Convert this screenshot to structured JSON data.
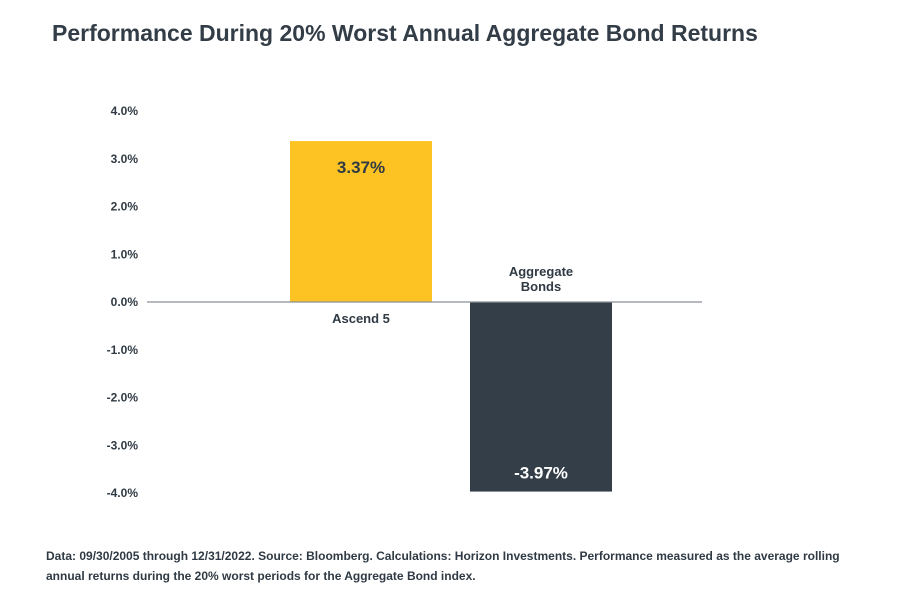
{
  "title": "Performance During 20% Worst Annual Aggregate Bond Returns",
  "footnote": "Data: 09/30/2005 through 12/31/2022. Source: Bloomberg. Calculations: Horizon Investments. Performance measured as the average rolling annual returns during the 20% worst periods for the Aggregate Bond index.",
  "chart_data": {
    "type": "bar",
    "categories": [
      "Ascend 5",
      "Aggregate\nBonds"
    ],
    "values": [
      3.37,
      -3.97
    ],
    "data_labels": [
      "3.37%",
      "-3.97%"
    ],
    "colors": [
      "#fdc323",
      "#333e48"
    ],
    "label_colors": [
      "#2f3a44",
      "#ffffff"
    ],
    "ylim": [
      -4.0,
      4.0
    ],
    "yticks": [
      "4.0%",
      "3.0%",
      "2.0%",
      "1.0%",
      "0.0%",
      "-1.0%",
      "-2.0%",
      "-3.0%",
      "-4.0%"
    ],
    "ytick_values": [
      4,
      3,
      2,
      1,
      0,
      -1,
      -2,
      -3,
      -4
    ],
    "grid": false,
    "legend": false,
    "title": "Performance During 20% Worst Annual Aggregate Bond Returns",
    "xlabel": "",
    "ylabel": ""
  }
}
